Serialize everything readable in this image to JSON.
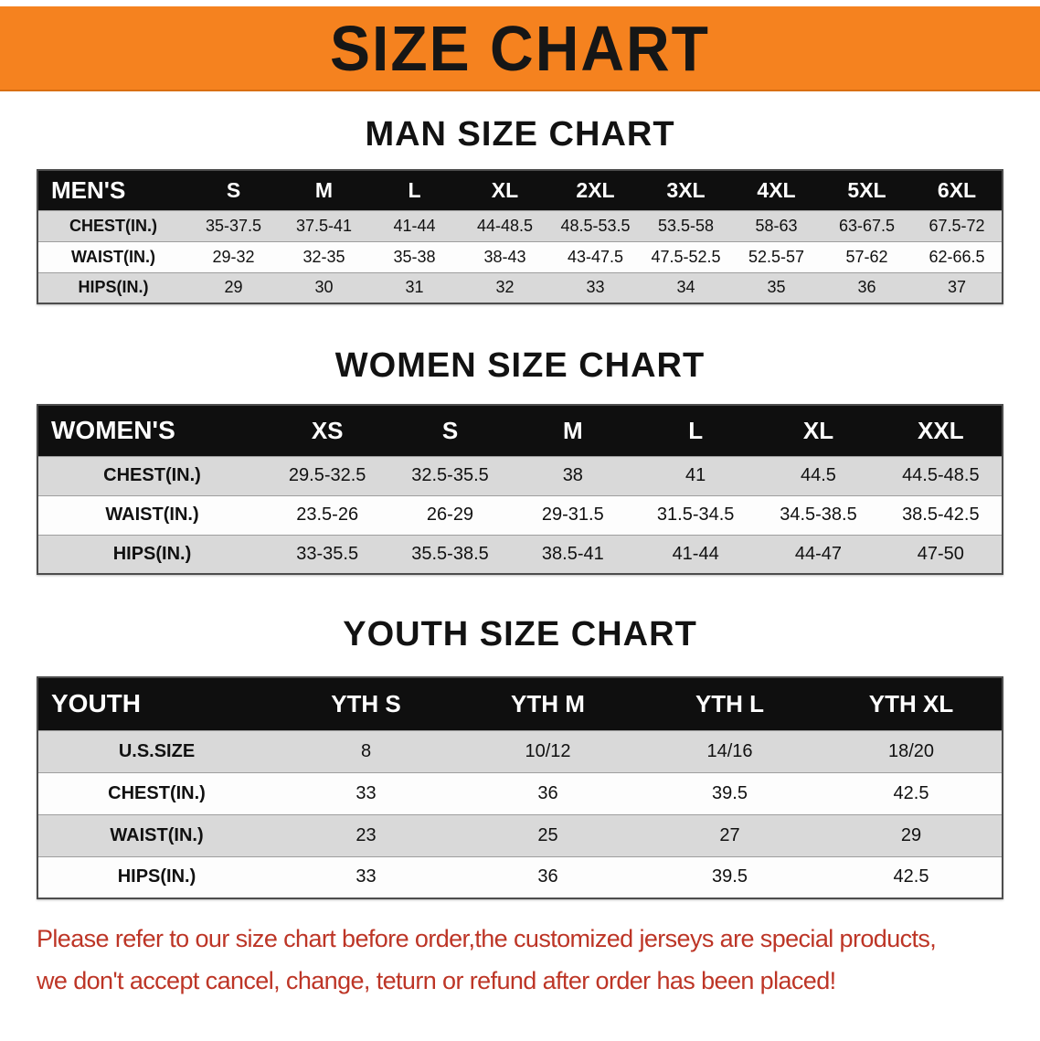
{
  "banner": {
    "title": "SIZE CHART",
    "bg_color": "#f5821f"
  },
  "sections": [
    {
      "heading": "MAN SIZE CHART",
      "table": {
        "header": [
          "MEN'S",
          "S",
          "M",
          "L",
          "XL",
          "2XL",
          "3XL",
          "4XL",
          "5XL",
          "6XL"
        ],
        "rows": [
          [
            "CHEST(IN.)",
            "35-37.5",
            "37.5-41",
            "41-44",
            "44-48.5",
            "48.5-53.5",
            "53.5-58",
            "58-63",
            "63-67.5",
            "67.5-72"
          ],
          [
            "WAIST(IN.)",
            "29-32",
            "32-35",
            "35-38",
            "38-43",
            "43-47.5",
            "47.5-52.5",
            "52.5-57",
            "57-62",
            "62-66.5"
          ],
          [
            "HIPS(IN.)",
            "29",
            "30",
            "31",
            "32",
            "33",
            "34",
            "35",
            "36",
            "37"
          ]
        ]
      }
    },
    {
      "heading": "WOMEN SIZE CHART",
      "table": {
        "header": [
          "WOMEN'S",
          "XS",
          "S",
          "M",
          "L",
          "XL",
          "XXL"
        ],
        "rows": [
          [
            "CHEST(IN.)",
            "29.5-32.5",
            "32.5-35.5",
            "38",
            "41",
            "44.5",
            "44.5-48.5"
          ],
          [
            "WAIST(IN.)",
            "23.5-26",
            "26-29",
            "29-31.5",
            "31.5-34.5",
            "34.5-38.5",
            "38.5-42.5"
          ],
          [
            "HIPS(IN.)",
            "33-35.5",
            "35.5-38.5",
            "38.5-41",
            "41-44",
            "44-47",
            "47-50"
          ]
        ]
      }
    },
    {
      "heading": "YOUTH SIZE CHART",
      "table": {
        "header": [
          "YOUTH",
          "YTH S",
          "YTH M",
          "YTH L",
          "YTH XL"
        ],
        "rows": [
          [
            "U.S.SIZE",
            "8",
            "10/12",
            "14/16",
            "18/20"
          ],
          [
            "CHEST(IN.)",
            "33",
            "36",
            "39.5",
            "42.5"
          ],
          [
            "WAIST(IN.)",
            "23",
            "25",
            "27",
            "29"
          ],
          [
            "HIPS(IN.)",
            "33",
            "36",
            "39.5",
            "42.5"
          ]
        ]
      }
    }
  ],
  "disclaimer": {
    "line1": "Please refer to our size chart before order,the customized jerseys are special products,",
    "line2": "we don't accept cancel, change, teturn or refund after order has been placed!",
    "color": "#bd3526"
  }
}
